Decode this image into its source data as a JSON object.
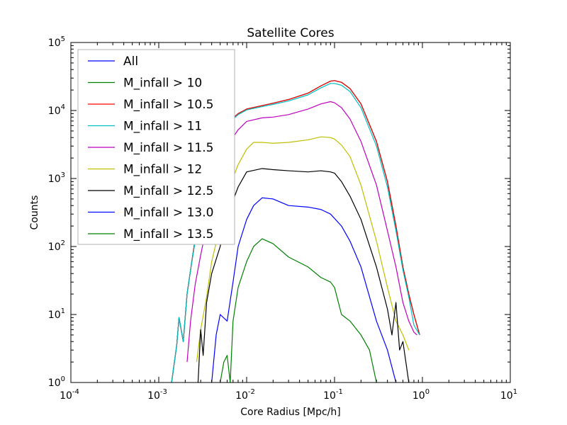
{
  "chart_data": {
    "type": "line",
    "title": "Satellite Cores",
    "xlabel": "Core Radius [Mpc/h]",
    "ylabel": "Counts",
    "xscale": "log",
    "yscale": "log",
    "xlim": [
      0.0001,
      10
    ],
    "ylim": [
      1,
      100000
    ],
    "x_ticks": [
      {
        "base": "10",
        "exp": "-4",
        "value": 0.0001
      },
      {
        "base": "10",
        "exp": "-3",
        "value": 0.001
      },
      {
        "base": "10",
        "exp": "-2",
        "value": 0.01
      },
      {
        "base": "10",
        "exp": "-1",
        "value": 0.1
      },
      {
        "base": "10",
        "exp": "0",
        "value": 1
      },
      {
        "base": "10",
        "exp": "1",
        "value": 10
      }
    ],
    "y_ticks": [
      {
        "base": "10",
        "exp": "0",
        "value": 1
      },
      {
        "base": "10",
        "exp": "1",
        "value": 10
      },
      {
        "base": "10",
        "exp": "2",
        "value": 100
      },
      {
        "base": "10",
        "exp": "3",
        "value": 1000
      },
      {
        "base": "10",
        "exp": "4",
        "value": 10000
      },
      {
        "base": "10",
        "exp": "5",
        "value": 100000
      }
    ],
    "legend_position": "upper-left",
    "grid": false,
    "series": [
      {
        "name": "All",
        "color": "#0000ff",
        "points": [
          [
            0.0014,
            1
          ],
          [
            0.0016,
            3.5
          ],
          [
            0.0017,
            9
          ],
          [
            0.0019,
            4
          ],
          [
            0.0021,
            20
          ],
          [
            0.0023,
            45
          ],
          [
            0.0026,
            130
          ],
          [
            0.003,
            350
          ],
          [
            0.0035,
            900
          ],
          [
            0.004,
            2000
          ],
          [
            0.005,
            4000
          ],
          [
            0.006,
            6500
          ],
          [
            0.008,
            9000
          ],
          [
            0.01,
            10500
          ],
          [
            0.015,
            11800
          ],
          [
            0.02,
            12800
          ],
          [
            0.03,
            14500
          ],
          [
            0.05,
            18000
          ],
          [
            0.07,
            23000
          ],
          [
            0.09,
            27000
          ],
          [
            0.1,
            27500
          ],
          [
            0.12,
            26000
          ],
          [
            0.15,
            21000
          ],
          [
            0.2,
            12500
          ],
          [
            0.3,
            3500
          ],
          [
            0.4,
            900
          ],
          [
            0.5,
            200
          ],
          [
            0.6,
            50
          ],
          [
            0.7,
            20
          ],
          [
            0.8,
            10
          ],
          [
            0.93,
            5
          ]
        ]
      },
      {
        "name": "M_infall > 10",
        "color": "#008000",
        "points": [
          [
            0.0014,
            1
          ],
          [
            0.0016,
            3.5
          ],
          [
            0.0017,
            9
          ],
          [
            0.0019,
            4
          ],
          [
            0.0021,
            20
          ],
          [
            0.0023,
            45
          ],
          [
            0.0026,
            130
          ],
          [
            0.003,
            350
          ],
          [
            0.0035,
            900
          ],
          [
            0.004,
            2000
          ],
          [
            0.005,
            4000
          ],
          [
            0.006,
            6500
          ],
          [
            0.008,
            9000
          ],
          [
            0.01,
            10500
          ],
          [
            0.015,
            11800
          ],
          [
            0.02,
            12800
          ],
          [
            0.03,
            14500
          ],
          [
            0.05,
            18000
          ],
          [
            0.07,
            23000
          ],
          [
            0.09,
            27000
          ],
          [
            0.1,
            27500
          ],
          [
            0.12,
            26000
          ],
          [
            0.15,
            21000
          ],
          [
            0.2,
            12500
          ],
          [
            0.3,
            3500
          ],
          [
            0.4,
            900
          ],
          [
            0.5,
            200
          ],
          [
            0.6,
            50
          ],
          [
            0.7,
            20
          ],
          [
            0.8,
            10
          ],
          [
            0.93,
            5
          ]
        ]
      },
      {
        "name": "M_infall > 10.5",
        "color": "#ff0000",
        "points": [
          [
            0.0014,
            1
          ],
          [
            0.0016,
            3.5
          ],
          [
            0.0017,
            9
          ],
          [
            0.0019,
            4
          ],
          [
            0.0021,
            20
          ],
          [
            0.0023,
            45
          ],
          [
            0.0026,
            130
          ],
          [
            0.003,
            350
          ],
          [
            0.0035,
            900
          ],
          [
            0.004,
            2000
          ],
          [
            0.005,
            4000
          ],
          [
            0.006,
            6500
          ],
          [
            0.008,
            9000
          ],
          [
            0.01,
            10500
          ],
          [
            0.015,
            11800
          ],
          [
            0.02,
            12800
          ],
          [
            0.03,
            14500
          ],
          [
            0.05,
            18000
          ],
          [
            0.07,
            23000
          ],
          [
            0.09,
            27000
          ],
          [
            0.1,
            27500
          ],
          [
            0.12,
            26000
          ],
          [
            0.15,
            21000
          ],
          [
            0.2,
            12500
          ],
          [
            0.3,
            3500
          ],
          [
            0.4,
            900
          ],
          [
            0.5,
            200
          ],
          [
            0.6,
            50
          ],
          [
            0.7,
            20
          ],
          [
            0.8,
            10
          ],
          [
            0.93,
            5
          ]
        ]
      },
      {
        "name": "M_infall > 11",
        "color": "#00bfbf",
        "points": [
          [
            0.0014,
            1
          ],
          [
            0.0016,
            3.5
          ],
          [
            0.0017,
            9
          ],
          [
            0.0019,
            4
          ],
          [
            0.0021,
            20
          ],
          [
            0.0023,
            45
          ],
          [
            0.0026,
            120
          ],
          [
            0.003,
            330
          ],
          [
            0.0035,
            850
          ],
          [
            0.004,
            1900
          ],
          [
            0.005,
            3800
          ],
          [
            0.006,
            6200
          ],
          [
            0.008,
            8700
          ],
          [
            0.01,
            10200
          ],
          [
            0.015,
            11400
          ],
          [
            0.02,
            12300
          ],
          [
            0.03,
            13800
          ],
          [
            0.05,
            17000
          ],
          [
            0.07,
            21500
          ],
          [
            0.09,
            25000
          ],
          [
            0.1,
            25000
          ],
          [
            0.12,
            23500
          ],
          [
            0.15,
            19000
          ],
          [
            0.2,
            11000
          ],
          [
            0.3,
            3000
          ],
          [
            0.4,
            750
          ],
          [
            0.5,
            170
          ],
          [
            0.6,
            45
          ],
          [
            0.7,
            18
          ],
          [
            0.8,
            7
          ],
          [
            0.93,
            5
          ]
        ]
      },
      {
        "name": "M_infall > 11.5",
        "color": "#bf00bf",
        "points": [
          [
            0.0021,
            2
          ],
          [
            0.0023,
            8
          ],
          [
            0.0026,
            28
          ],
          [
            0.003,
            75
          ],
          [
            0.0035,
            200
          ],
          [
            0.004,
            500
          ],
          [
            0.005,
            1400
          ],
          [
            0.006,
            3000
          ],
          [
            0.008,
            5200
          ],
          [
            0.01,
            6900
          ],
          [
            0.015,
            7800
          ],
          [
            0.02,
            8000
          ],
          [
            0.03,
            8700
          ],
          [
            0.05,
            10500
          ],
          [
            0.07,
            12500
          ],
          [
            0.09,
            13500
          ],
          [
            0.1,
            13000
          ],
          [
            0.12,
            11000
          ],
          [
            0.15,
            7500
          ],
          [
            0.2,
            3500
          ],
          [
            0.3,
            800
          ],
          [
            0.4,
            170
          ],
          [
            0.5,
            50
          ],
          [
            0.6,
            15
          ],
          [
            0.7,
            8
          ],
          [
            0.8,
            5.5
          ],
          [
            0.87,
            5
          ]
        ]
      },
      {
        "name": "M_infall > 12",
        "color": "#bfbf00",
        "points": [
          [
            0.0027,
            2
          ],
          [
            0.003,
            6
          ],
          [
            0.0035,
            18
          ],
          [
            0.004,
            60
          ],
          [
            0.005,
            200
          ],
          [
            0.006,
            600
          ],
          [
            0.008,
            1600
          ],
          [
            0.01,
            2700
          ],
          [
            0.012,
            3400
          ],
          [
            0.015,
            3400
          ],
          [
            0.02,
            3300
          ],
          [
            0.03,
            3400
          ],
          [
            0.05,
            3700
          ],
          [
            0.07,
            4100
          ],
          [
            0.09,
            4000
          ],
          [
            0.1,
            3800
          ],
          [
            0.12,
            3100
          ],
          [
            0.15,
            2100
          ],
          [
            0.2,
            800
          ],
          [
            0.3,
            120
          ],
          [
            0.4,
            25
          ],
          [
            0.5,
            8
          ],
          [
            0.6,
            5
          ],
          [
            0.7,
            3
          ]
        ]
      },
      {
        "name": "M_infall > 12.5",
        "color": "#000000",
        "points": [
          [
            0.0028,
            1
          ],
          [
            0.003,
            6
          ],
          [
            0.0032,
            2.5
          ],
          [
            0.0035,
            15
          ],
          [
            0.004,
            40
          ],
          [
            0.005,
            100
          ],
          [
            0.006,
            280
          ],
          [
            0.008,
            750
          ],
          [
            0.01,
            1250
          ],
          [
            0.015,
            1400
          ],
          [
            0.02,
            1350
          ],
          [
            0.03,
            1300
          ],
          [
            0.05,
            1250
          ],
          [
            0.07,
            1300
          ],
          [
            0.09,
            1250
          ],
          [
            0.1,
            1200
          ],
          [
            0.12,
            900
          ],
          [
            0.15,
            550
          ],
          [
            0.2,
            250
          ],
          [
            0.3,
            50
          ],
          [
            0.4,
            12
          ],
          [
            0.45,
            5
          ],
          [
            0.5,
            15
          ],
          [
            0.55,
            3
          ],
          [
            0.6,
            4
          ],
          [
            0.7,
            1
          ]
        ]
      },
      {
        "name": "M_infall > 13.0",
        "color": "#0000ff",
        "points": [
          [
            0.004,
            1
          ],
          [
            0.0045,
            5
          ],
          [
            0.005,
            10
          ],
          [
            0.006,
            8
          ],
          [
            0.007,
            30
          ],
          [
            0.008,
            100
          ],
          [
            0.01,
            250
          ],
          [
            0.012,
            400
          ],
          [
            0.015,
            520
          ],
          [
            0.02,
            500
          ],
          [
            0.03,
            400
          ],
          [
            0.05,
            380
          ],
          [
            0.07,
            350
          ],
          [
            0.09,
            300
          ],
          [
            0.12,
            200
          ],
          [
            0.15,
            120
          ],
          [
            0.2,
            50
          ],
          [
            0.3,
            8
          ],
          [
            0.4,
            3
          ],
          [
            0.5,
            1
          ]
        ]
      },
      {
        "name": "M_infall > 13.5",
        "color": "#008000",
        "points": [
          [
            0.005,
            1
          ],
          [
            0.0055,
            2
          ],
          [
            0.006,
            2.5
          ],
          [
            0.0065,
            1
          ],
          [
            0.007,
            8
          ],
          [
            0.008,
            25
          ],
          [
            0.01,
            60
          ],
          [
            0.012,
            100
          ],
          [
            0.015,
            130
          ],
          [
            0.02,
            110
          ],
          [
            0.03,
            70
          ],
          [
            0.05,
            50
          ],
          [
            0.07,
            35
          ],
          [
            0.09,
            30
          ],
          [
            0.1,
            25
          ],
          [
            0.12,
            10
          ],
          [
            0.15,
            8
          ],
          [
            0.2,
            5
          ],
          [
            0.25,
            3
          ],
          [
            0.3,
            1
          ]
        ]
      }
    ]
  }
}
